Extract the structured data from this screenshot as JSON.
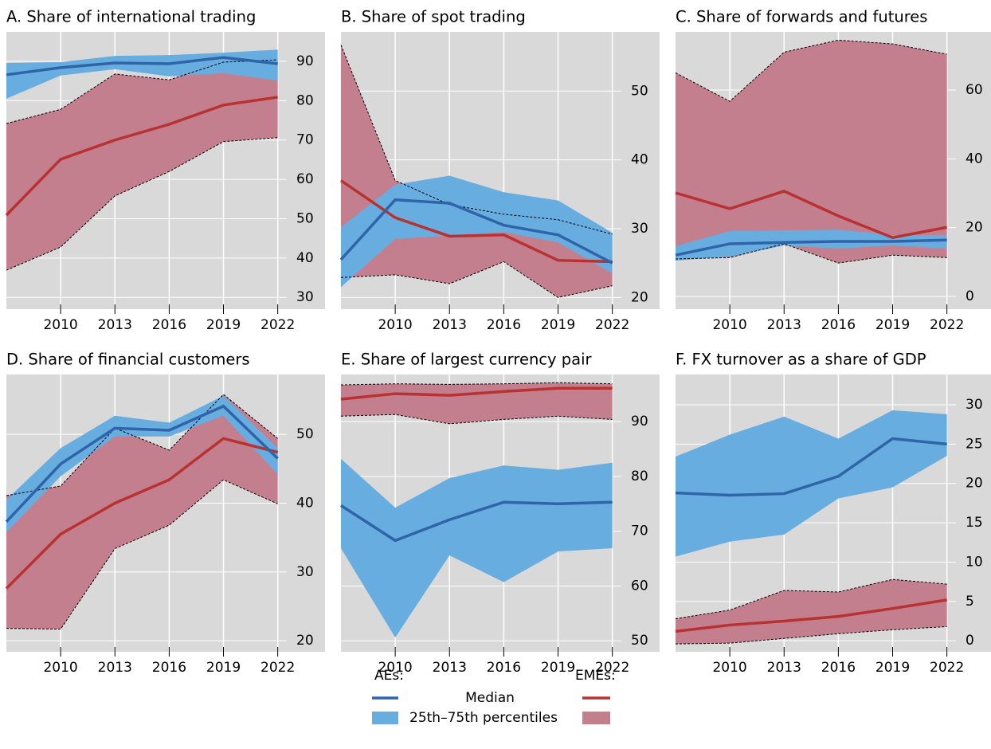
{
  "chart_data": [
    {
      "type": "line",
      "title": "A. Share of international trading",
      "x": [
        2007,
        2010,
        2013,
        2016,
        2019,
        2022
      ],
      "xlim": [
        2007,
        2022.5
      ],
      "xticks": [
        2010,
        2013,
        2016,
        2019,
        2022
      ],
      "ylim": [
        27,
        97.5
      ],
      "yticks": [
        30,
        40,
        50,
        60,
        70,
        80,
        90
      ],
      "grid": true,
      "bands": [
        {
          "color": "#c47f8f",
          "edge": "dashed",
          "low": [
            36.9,
            42.8,
            55.8,
            62,
            69.6,
            70.6
          ],
          "high": [
            74.2,
            77.8,
            86.8,
            85.3,
            89.8,
            90.4
          ]
        },
        {
          "color": "#67ade0",
          "low": [
            80.5,
            86.4,
            88,
            86.2,
            87,
            85.1
          ],
          "high": [
            89.6,
            89.8,
            91.4,
            91.6,
            92.2,
            93
          ]
        }
      ],
      "series": [
        {
          "color": "#b83232",
          "values": [
            50.9,
            65.1,
            70,
            74,
            78.9,
            80.9
          ]
        },
        {
          "color": "#2f64a8",
          "values": [
            86.6,
            88.4,
            89.6,
            89.4,
            91,
            89.4
          ]
        }
      ]
    },
    {
      "type": "line",
      "title": "B. Share of spot trading",
      "x": [
        2007,
        2010,
        2013,
        2016,
        2019,
        2022
      ],
      "xlim": [
        2007,
        2022.5
      ],
      "xticks": [
        2010,
        2013,
        2016,
        2019,
        2022
      ],
      "ylim": [
        18.3,
        58.6
      ],
      "yticks": [
        20,
        30,
        40,
        50
      ],
      "grid": true,
      "bands": [
        {
          "color": "#c47f8f",
          "edge": "dashed",
          "low": [
            22.9,
            23.3,
            22,
            25.2,
            20,
            21.7
          ],
          "high": [
            56.7,
            37,
            33.5,
            32.1,
            31.3,
            29.2
          ]
        },
        {
          "color": "#67ade0",
          "low": [
            21.5,
            28.5,
            29,
            29.5,
            28,
            23.5
          ],
          "high": [
            30.2,
            36.4,
            37.7,
            35.3,
            34.1,
            29.4
          ]
        }
      ],
      "series": [
        {
          "color": "#b83232",
          "values": [
            37,
            31.6,
            28.9,
            29.1,
            25.4,
            25.2
          ]
        },
        {
          "color": "#2f64a8",
          "values": [
            25.5,
            34.2,
            33.7,
            30.5,
            29.1,
            25
          ]
        }
      ]
    },
    {
      "type": "line",
      "title": "C. Share of forwards and futures",
      "x": [
        2007,
        2010,
        2013,
        2016,
        2019,
        2022
      ],
      "xlim": [
        2007,
        2022.5
      ],
      "xticks": [
        2010,
        2013,
        2016,
        2019,
        2022
      ],
      "ylim": [
        -3.7,
        76.9
      ],
      "yticks": [
        0,
        20,
        40,
        60
      ],
      "grid": true,
      "bands": [
        {
          "color": "#c47f8f",
          "edge": "dashed",
          "low": [
            10.9,
            11.3,
            15.3,
            9.7,
            12,
            11.3
          ],
          "high": [
            65,
            56.7,
            71,
            74.5,
            73.4,
            70.4
          ]
        },
        {
          "color": "#67ade0",
          "low": [
            10.4,
            11.6,
            14.8,
            13.9,
            14.8,
            13.9
          ],
          "high": [
            14.6,
            19,
            19.2,
            19.4,
            17.8,
            17.8
          ]
        }
      ],
      "series": [
        {
          "color": "#b83232",
          "values": [
            30.1,
            25.5,
            30.6,
            23.4,
            17.1,
            20.1
          ]
        },
        {
          "color": "#2f64a8",
          "values": [
            12,
            15.3,
            15.7,
            16,
            16,
            16.4
          ]
        }
      ]
    },
    {
      "type": "line",
      "title": "D. Share of financial customers",
      "x": [
        2007,
        2010,
        2013,
        2016,
        2019,
        2022
      ],
      "xlim": [
        2007,
        2022.5
      ],
      "xticks": [
        2010,
        2013,
        2016,
        2019,
        2022
      ],
      "ylim": [
        18.4,
        58.7
      ],
      "yticks": [
        20,
        30,
        40,
        50
      ],
      "grid": true,
      "bands": [
        {
          "color": "#c47f8f",
          "edge": "dashed",
          "low": [
            21.8,
            21.7,
            33.4,
            36.8,
            43.4,
            39.9
          ],
          "high": [
            41.1,
            42.5,
            50.9,
            47.7,
            55.8,
            49.4
          ]
        },
        {
          "color": "#67ade0",
          "low": [
            35.8,
            43.9,
            49.7,
            49.7,
            52.7,
            44.2
          ],
          "high": [
            40.5,
            48,
            52.7,
            51.7,
            55.6,
            48
          ]
        }
      ],
      "series": [
        {
          "color": "#b83232",
          "values": [
            27.6,
            35.5,
            40,
            43.4,
            49.4,
            47.4
          ]
        },
        {
          "color": "#2f64a8",
          "values": [
            37.3,
            45.7,
            50.9,
            50.6,
            54.1,
            46.5
          ]
        }
      ]
    },
    {
      "type": "line",
      "title": "E. Share of largest currency pair",
      "x": [
        2007,
        2010,
        2013,
        2016,
        2019,
        2022
      ],
      "xlim": [
        2007,
        2022.5
      ],
      "xticks": [
        2010,
        2013,
        2016,
        2019,
        2022
      ],
      "ylim": [
        48,
        98.6
      ],
      "yticks": [
        50,
        60,
        70,
        80,
        90
      ],
      "grid": true,
      "bands": [
        {
          "color": "#c47f8f",
          "edge": "dashed",
          "low": [
            91,
            91.3,
            89.6,
            90.4,
            91,
            90.4
          ],
          "high": [
            96.7,
            96.9,
            96.8,
            96.9,
            97.1,
            96.9
          ]
        },
        {
          "color": "#67ade0",
          "low": [
            66.9,
            50.6,
            65.6,
            60.7,
            66.3,
            66.9
          ],
          "high": [
            83.2,
            74.3,
            79.7,
            82,
            81.2,
            82.5
          ]
        }
      ],
      "series": [
        {
          "color": "#b83232",
          "values": [
            94.1,
            95.1,
            94.8,
            95.5,
            96.1,
            96.1
          ]
        },
        {
          "color": "#2f64a8",
          "values": [
            74.7,
            68.3,
            72.1,
            75.3,
            75,
            75.3
          ]
        }
      ]
    },
    {
      "type": "line",
      "title": "F. FX turnover as a share of GDP",
      "x": [
        2007,
        2010,
        2013,
        2016,
        2019,
        2022
      ],
      "xlim": [
        2007,
        2022.5
      ],
      "xticks": [
        2010,
        2013,
        2016,
        2019,
        2022
      ],
      "ylim": [
        -1.4,
        33.85
      ],
      "yticks": [
        0,
        5,
        10,
        15,
        20,
        25,
        30
      ],
      "grid": true,
      "bands": [
        {
          "color": "#c47f8f",
          "edge": "dashed",
          "low": [
            -0.4,
            -0.3,
            0.3,
            0.9,
            1.4,
            1.8
          ],
          "high": [
            2.8,
            3.9,
            6.4,
            6.2,
            7.8,
            7.2
          ]
        },
        {
          "color": "#67ade0",
          "low": [
            10.7,
            12.6,
            13.5,
            18.1,
            19.5,
            23.5
          ],
          "high": [
            23.4,
            26.2,
            28.5,
            25.7,
            29.3,
            28.8
          ]
        }
      ],
      "series": [
        {
          "color": "#b83232",
          "values": [
            1.2,
            2,
            2.5,
            3.1,
            4.1,
            5.2
          ]
        },
        {
          "color": "#2f64a8",
          "values": [
            18.8,
            18.5,
            18.7,
            20.9,
            25.7,
            25
          ]
        }
      ]
    }
  ],
  "legend": {
    "groups": [
      "AEs:",
      "EMEs:"
    ],
    "entries": [
      "Median",
      "25th–75th percentiles"
    ]
  }
}
